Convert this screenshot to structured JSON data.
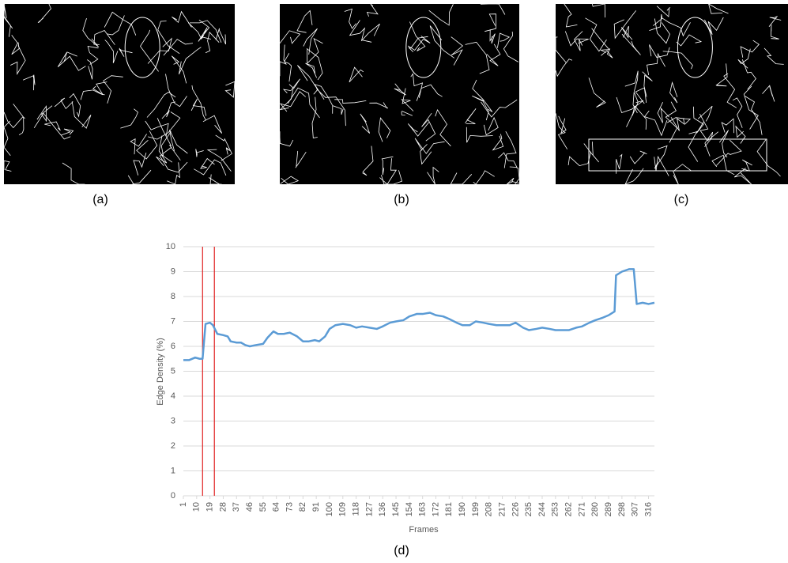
{
  "panel_labels": [
    "(a)",
    "(b)",
    "(c)",
    "(d)"
  ],
  "chart_data": {
    "type": "line",
    "x_label": "Frames",
    "y_label": "Edge Density (%)",
    "x": [
      1,
      5,
      9,
      12,
      14,
      16,
      19,
      21,
      24,
      28,
      31,
      33,
      37,
      40,
      43,
      46,
      50,
      55,
      58,
      62,
      65,
      69,
      73,
      78,
      82,
      86,
      90,
      93,
      97,
      100,
      104,
      109,
      114,
      118,
      122,
      127,
      132,
      136,
      141,
      145,
      150,
      154,
      159,
      163,
      168,
      172,
      177,
      181,
      186,
      190,
      195,
      199,
      204,
      208,
      213,
      217,
      222,
      226,
      231,
      235,
      240,
      244,
      249,
      253,
      258,
      262,
      267,
      271,
      276,
      280,
      285,
      289,
      293,
      294,
      298,
      303,
      306,
      308,
      312,
      316,
      320
    ],
    "values": [
      5.45,
      5.45,
      5.55,
      5.5,
      5.5,
      6.9,
      6.95,
      6.85,
      6.5,
      6.45,
      6.4,
      6.2,
      6.15,
      6.15,
      6.05,
      6.0,
      6.05,
      6.1,
      6.35,
      6.6,
      6.5,
      6.5,
      6.55,
      6.4,
      6.2,
      6.2,
      6.25,
      6.2,
      6.4,
      6.7,
      6.85,
      6.9,
      6.85,
      6.75,
      6.8,
      6.75,
      6.7,
      6.8,
      6.95,
      7.0,
      7.05,
      7.2,
      7.3,
      7.3,
      7.35,
      7.25,
      7.2,
      7.1,
      6.95,
      6.85,
      6.85,
      7.0,
      6.95,
      6.9,
      6.85,
      6.85,
      6.85,
      6.95,
      6.75,
      6.65,
      6.7,
      6.75,
      6.7,
      6.65,
      6.65,
      6.65,
      6.75,
      6.8,
      6.95,
      7.05,
      7.15,
      7.25,
      7.4,
      8.85,
      9.0,
      9.1,
      9.1,
      7.7,
      7.75,
      7.7,
      7.75
    ],
    "color": "#5b9bd5",
    "markers_x": [
      14,
      22
    ],
    "marker_color": "#e02020",
    "xlim": [
      1,
      320
    ],
    "xticks": [
      1,
      10,
      19,
      28,
      37,
      46,
      55,
      64,
      73,
      82,
      91,
      100,
      109,
      118,
      127,
      136,
      145,
      154,
      163,
      172,
      181,
      190,
      199,
      208,
      217,
      226,
      235,
      244,
      253,
      262,
      271,
      280,
      289,
      298,
      307,
      316
    ],
    "ylim": [
      0,
      10
    ],
    "yticks": [
      0,
      1,
      2,
      3,
      4,
      5,
      6,
      7,
      8,
      9,
      10
    ],
    "grid": true
  }
}
